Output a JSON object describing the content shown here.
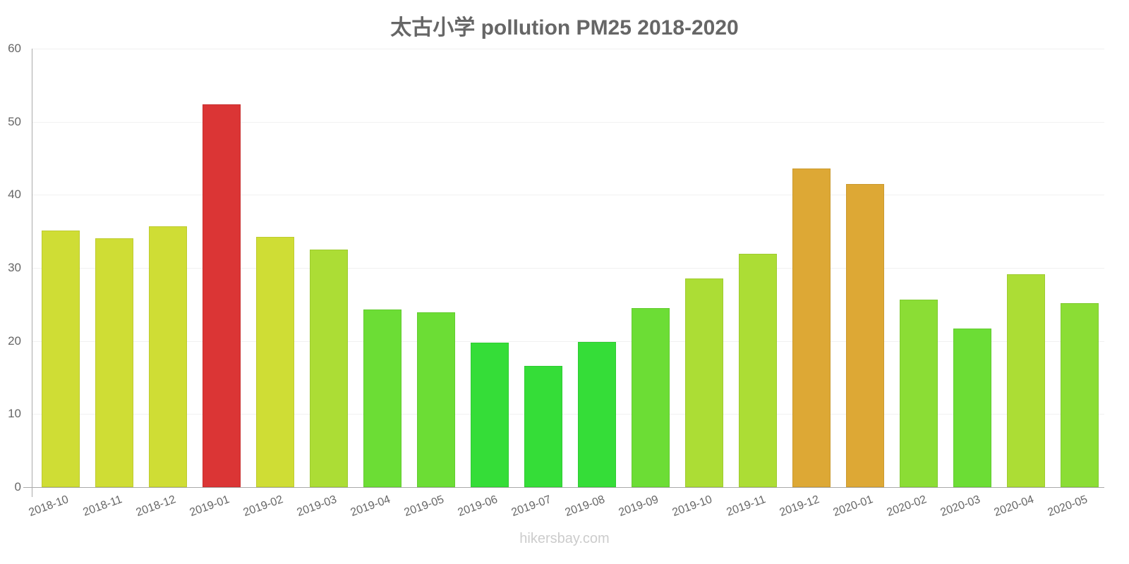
{
  "title": "太古小学 pollution PM25 2018-2020",
  "watermark": "hikersbay.com",
  "y_ticks": [
    "0",
    "10",
    "20",
    "30",
    "40",
    "50",
    "60"
  ],
  "chart_data": {
    "type": "bar",
    "title": "太古小学 pollution PM25 2018-2020",
    "xlabel": "",
    "ylabel": "",
    "ylim": [
      0,
      60
    ],
    "yticks": [
      0,
      10,
      20,
      30,
      40,
      50,
      60
    ],
    "grid": true,
    "legend": null,
    "categories": [
      "2018-10",
      "2018-11",
      "2018-12",
      "2019-01",
      "2019-02",
      "2019-03",
      "2019-04",
      "2019-05",
      "2019-06",
      "2019-07",
      "2019-08",
      "2019-09",
      "2019-10",
      "2019-11",
      "2019-12",
      "2020-01",
      "2020-02",
      "2020-03",
      "2020-04",
      "2020-05"
    ],
    "values": [
      35.1,
      34.1,
      35.7,
      52.4,
      34.2,
      32.5,
      24.3,
      23.9,
      19.8,
      16.6,
      19.9,
      24.5,
      28.6,
      31.9,
      43.6,
      41.5,
      25.7,
      21.7,
      29.1,
      25.2
    ],
    "colors": [
      "#cfdd35",
      "#cfdd35",
      "#cfdd35",
      "#db3535",
      "#cfdd35",
      "#acdd35",
      "#6cdd35",
      "#6cdd35",
      "#35dd38",
      "#35dd38",
      "#35dd38",
      "#6cdd35",
      "#acdd35",
      "#acdd35",
      "#dda835",
      "#dda835",
      "#8bdd35",
      "#6cdd35",
      "#acdd35",
      "#8bdd35"
    ]
  }
}
